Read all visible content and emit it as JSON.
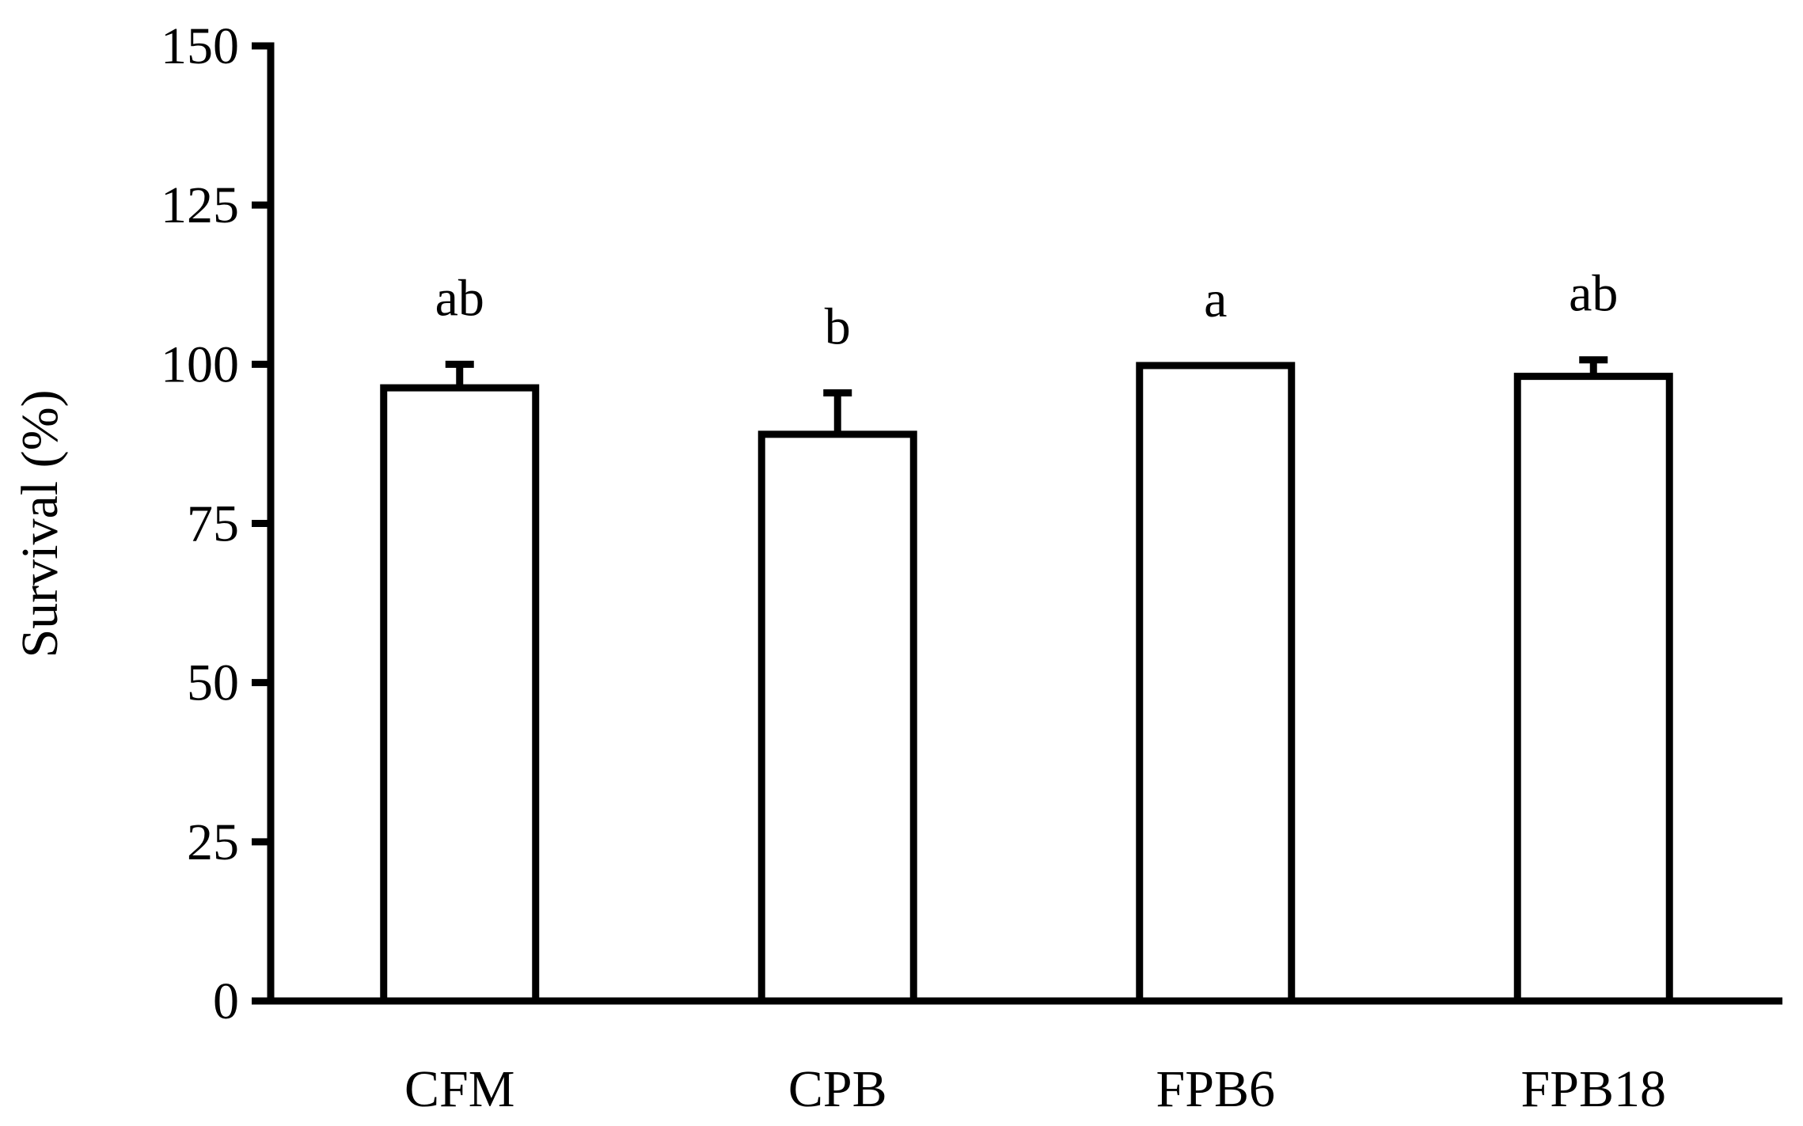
{
  "chart_data": {
    "type": "bar",
    "categories": [
      "CFM",
      "CPB",
      "FPB6",
      "FPB18"
    ],
    "values": [
      96.3,
      89.0,
      99.8,
      98.1
    ],
    "errors": [
      3.7,
      6.5,
      0,
      2.6
    ],
    "significance_labels": [
      "ab",
      "b",
      "a",
      "ab"
    ],
    "ylabel": "Survival (%)",
    "xlabel": "",
    "ylim": [
      0,
      150
    ],
    "yticks": [
      0,
      25,
      50,
      75,
      100,
      125,
      150
    ],
    "ytick_labels": [
      "0",
      "25",
      "50",
      "75",
      "100",
      "125",
      "150"
    ],
    "grid": false,
    "legend": false,
    "bar_fill": "#ffffff",
    "bar_stroke": "#000000"
  }
}
